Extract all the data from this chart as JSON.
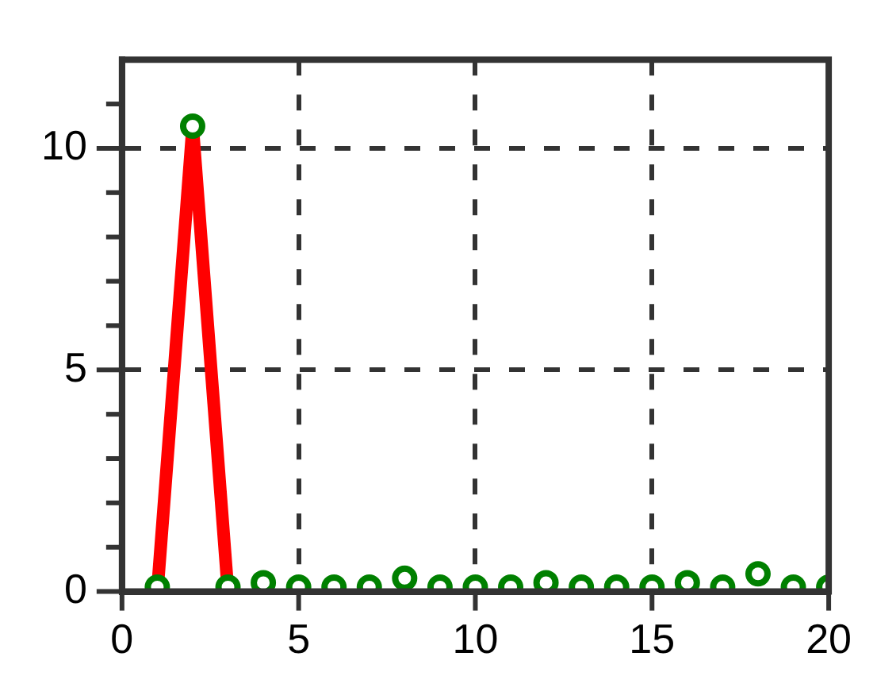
{
  "chart_data": {
    "type": "line",
    "x": [
      1,
      2,
      3,
      4,
      5,
      6,
      7,
      8,
      9,
      10,
      11,
      12,
      13,
      14,
      15,
      16,
      17,
      18,
      19,
      20
    ],
    "series": [
      {
        "type": "line",
        "color": "#ff0000",
        "x": [
          1,
          2,
          3
        ],
        "values": [
          0,
          10.5,
          0
        ],
        "marker": "none"
      },
      {
        "type": "scatter",
        "color": "#008000",
        "values": [
          0.1,
          10.5,
          0.1,
          0.2,
          0.1,
          0.1,
          0.1,
          0.3,
          0.1,
          0.1,
          0.1,
          0.2,
          0.1,
          0.1,
          0.1,
          0.2,
          0.1,
          0.4,
          0.1,
          0.1
        ],
        "marker": "circle"
      }
    ],
    "xlim": [
      0,
      20
    ],
    "xticks": [
      0,
      5,
      10,
      15,
      20
    ],
    "ylim": [
      0,
      12
    ],
    "yticks": [
      0,
      {
        "value": 1,
        "label": null
      },
      {
        "value": 2,
        "label": null
      },
      {
        "value": 3,
        "label": null
      },
      {
        "value": 4,
        "label": null
      },
      5,
      {
        "value": 6,
        "label": null
      },
      {
        "value": 7,
        "label": null
      },
      {
        "value": 8,
        "label": null
      },
      {
        "value": 9,
        "label": null
      },
      10,
      {
        "value": 11,
        "label": null
      }
    ],
    "grid": true,
    "legend": false
  }
}
